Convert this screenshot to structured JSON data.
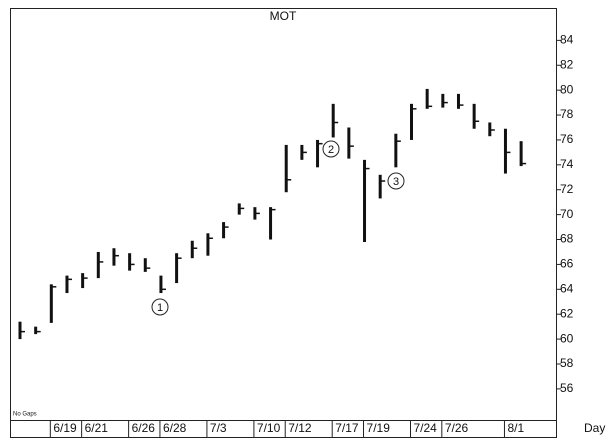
{
  "chart_data": {
    "type": "ohlc",
    "title": "MOT",
    "x_label": "Day",
    "note": "No Gaps",
    "categories": [
      null,
      null,
      "6/19",
      null,
      "6/21",
      null,
      null,
      "6/26",
      null,
      "6/28",
      null,
      null,
      "7/3",
      null,
      null,
      "7/10",
      null,
      "7/12",
      null,
      null,
      "7/17",
      null,
      "7/19",
      null,
      null,
      "7/24",
      null,
      "7/26",
      null,
      null,
      null,
      "8/1",
      null
    ],
    "high": [
      61.4,
      61.0,
      64.4,
      65.1,
      65.3,
      67.0,
      67.3,
      66.9,
      66.5,
      65.1,
      66.9,
      67.9,
      68.5,
      69.4,
      70.9,
      70.6,
      70.6,
      75.6,
      75.6,
      76.0,
      78.9,
      77.0,
      74.4,
      73.2,
      76.5,
      78.9,
      80.1,
      79.7,
      79.7,
      78.9,
      77.4,
      76.9,
      75.9
    ],
    "low": [
      60.0,
      60.4,
      61.3,
      63.7,
      64.1,
      64.9,
      65.9,
      65.5,
      65.4,
      63.7,
      64.5,
      66.5,
      66.7,
      68.1,
      70.0,
      69.6,
      68.0,
      71.8,
      74.4,
      73.8,
      76.2,
      74.5,
      67.8,
      71.3,
      73.8,
      76.0,
      78.5,
      78.6,
      78.5,
      76.9,
      76.3,
      73.3,
      73.9
    ],
    "close": [
      60.6,
      60.6,
      64.2,
      64.8,
      64.9,
      66.2,
      66.7,
      66.0,
      65.7,
      64.0,
      66.5,
      67.3,
      68.1,
      69.0,
      70.5,
      70.1,
      70.4,
      72.8,
      75.0,
      75.7,
      77.4,
      75.5,
      73.7,
      72.7,
      75.9,
      78.5,
      78.7,
      79.0,
      78.8,
      77.5,
      76.8,
      75.0,
      74.1
    ],
    "color": "#111111",
    "annotations": [
      "1",
      "2",
      "3"
    ],
    "ylim": [
      53.5,
      86.6
    ],
    "yticks": [
      56,
      58,
      60,
      62,
      64,
      66,
      68,
      70,
      72,
      74,
      76,
      78,
      80,
      82,
      84
    ]
  }
}
